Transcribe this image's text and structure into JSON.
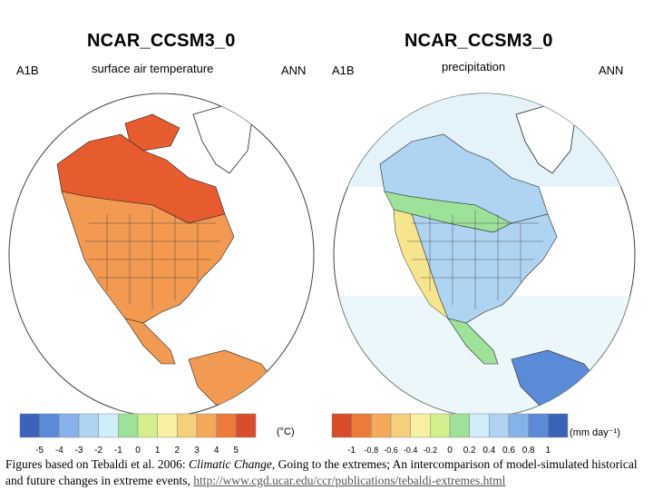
{
  "left_panel": {
    "model": "NCAR_CCSM3_0",
    "scenario": "A1B",
    "variable": "surface air temperature",
    "period": "ANN",
    "unit": "(°C)",
    "colorbar": {
      "ticks": [
        "-5",
        "-4",
        "-3",
        "-2",
        "-1",
        "0",
        "1",
        "2",
        "3",
        "4",
        "5"
      ],
      "colors": [
        "#3a63b8",
        "#5b8bd6",
        "#86b2ea",
        "#aed4f2",
        "#cfeefa",
        "#9ee29a",
        "#d4ef8e",
        "#f6f0a0",
        "#f6cf7a",
        "#f3a85a",
        "#ec7a3a",
        "#d94c2a"
      ]
    }
  },
  "right_panel": {
    "model": "NCAR_CCSM3_0",
    "scenario": "A1B",
    "variable": "precipitation",
    "period": "ANN",
    "unit": "(mm day⁻¹)",
    "colorbar": {
      "ticks": [
        "-1",
        "-0.8",
        "-0.6",
        "-0.4",
        "-0.2",
        "0",
        "0.2",
        "0.4",
        "0.6",
        "0.8",
        "1"
      ],
      "colors": [
        "#d94c2a",
        "#ec7a3a",
        "#f3a85a",
        "#f6cf7a",
        "#f6f0a0",
        "#d4ef8e",
        "#9ee29a",
        "#cfeefa",
        "#aed4f2",
        "#86b2ea",
        "#5b8bd6",
        "#3a63b8"
      ]
    }
  },
  "caption": {
    "part1": "Figures based on Tebaldi et al. 2006: ",
    "journal": "Climatic Change",
    "part2": ", Going to the extremes; An intercomparison of model-simulated historical and future changes in extreme events, ",
    "link": "http://www.cgd.ucar.edu/ccr/publications/tebaldi-extremes.html"
  },
  "colors": {
    "temp_land_main": "#f29a52",
    "temp_land_north": "#e65c2e",
    "precip_ocean_pale": "#e4f3fa",
    "precip_land_blue": "#aed4f2",
    "precip_land_green": "#9ee29a",
    "precip_land_yellow": "#f6e58e"
  }
}
